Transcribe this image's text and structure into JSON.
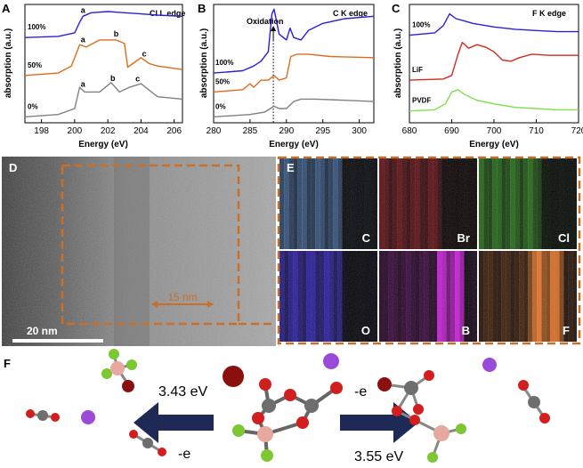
{
  "figure": {
    "panel_labels": [
      "A",
      "B",
      "C",
      "D",
      "E",
      "F"
    ],
    "panel_label_colors": {
      "dark": "#000000",
      "light": "#ffffff"
    }
  },
  "chart_data": [
    {
      "type": "line",
      "panel": "A",
      "title": "Cl L edge",
      "xlabel": "Energy (eV)",
      "ylabel": "absorption (a.u.)",
      "xlim": [
        197,
        206.5
      ],
      "xticks": [
        198,
        200,
        202,
        204,
        206
      ],
      "series": [
        {
          "name": "100%",
          "color": "#2b1fd8",
          "x": [
            197,
            199,
            200,
            200.3,
            200.5,
            201,
            202,
            203,
            204,
            205,
            206.5
          ],
          "y": [
            0.72,
            0.73,
            0.76,
            0.85,
            0.9,
            0.93,
            0.94,
            0.93,
            0.92,
            0.91,
            0.9
          ]
        },
        {
          "name": "50%",
          "color": "#e06b1c",
          "x": [
            197,
            199,
            199.8,
            200.3,
            200.7,
            201.5,
            202.5,
            203,
            203.2,
            203.5,
            204,
            204.5,
            205,
            206.5
          ],
          "y": [
            0.4,
            0.42,
            0.48,
            0.66,
            0.64,
            0.7,
            0.7,
            0.67,
            0.47,
            0.5,
            0.55,
            0.5,
            0.48,
            0.45
          ]
        },
        {
          "name": "0%",
          "color": "#808080",
          "x": [
            197,
            199,
            200,
            200.3,
            200.6,
            201.5,
            202.2,
            202.7,
            203.3,
            204,
            205,
            206.5
          ],
          "y": [
            0.05,
            0.07,
            0.12,
            0.3,
            0.26,
            0.26,
            0.34,
            0.26,
            0.3,
            0.33,
            0.22,
            0.2
          ]
        }
      ],
      "annotations": [
        {
          "text": "a",
          "x": 200.5,
          "series": "100%"
        },
        {
          "text": "a",
          "x": 200.5,
          "series": "50%"
        },
        {
          "text": "b",
          "x": 202.5,
          "series": "50%"
        },
        {
          "text": "c",
          "x": 204.2,
          "series": "50%"
        },
        {
          "text": "a",
          "x": 200.5,
          "series": "0%"
        },
        {
          "text": "b",
          "x": 202.3,
          "series": "0%"
        },
        {
          "text": "c",
          "x": 203.8,
          "series": "0%"
        }
      ]
    },
    {
      "type": "line",
      "panel": "B",
      "title": "C K edge",
      "xlabel": "Energy (eV)",
      "ylabel": "absorption (a.u.)",
      "xlim": [
        280,
        302
      ],
      "xticks": [
        280,
        285,
        290,
        295,
        300
      ],
      "annotation": "Oxidation",
      "marker_x": 288.2,
      "series": [
        {
          "name": "100%",
          "color": "#2b1fd8",
          "x": [
            280,
            284,
            285.5,
            286.5,
            287.5,
            288,
            288.3,
            289,
            290,
            290.5,
            291,
            292,
            293,
            295,
            298,
            302
          ],
          "y": [
            0.42,
            0.44,
            0.48,
            0.52,
            0.6,
            0.92,
            0.96,
            0.75,
            0.7,
            0.8,
            0.72,
            0.7,
            0.78,
            0.84,
            0.88,
            0.9
          ]
        },
        {
          "name": "50%",
          "color": "#e06b1c",
          "x": [
            280,
            284,
            285,
            285.5,
            286.5,
            287.5,
            288.3,
            289,
            290,
            290.6,
            291.5,
            293,
            296,
            302
          ],
          "y": [
            0.26,
            0.28,
            0.33,
            0.3,
            0.36,
            0.36,
            0.4,
            0.36,
            0.38,
            0.56,
            0.58,
            0.58,
            0.56,
            0.55
          ]
        },
        {
          "name": "0%",
          "color": "#808080",
          "x": [
            280,
            285,
            287,
            288.3,
            289,
            290,
            291,
            292,
            294,
            298,
            302
          ],
          "y": [
            0.05,
            0.07,
            0.09,
            0.14,
            0.12,
            0.12,
            0.18,
            0.2,
            0.2,
            0.19,
            0.18
          ]
        }
      ]
    },
    {
      "type": "line",
      "panel": "C",
      "title": "F K edge",
      "xlabel": "Energy (eV)",
      "ylabel": "absorption (a.u.)",
      "xlim": [
        680,
        720
      ],
      "xticks": [
        680,
        690,
        700,
        710,
        720
      ],
      "series": [
        {
          "name": "100%",
          "color": "#2b1fd8",
          "x": [
            680,
            686,
            688,
            689.5,
            691,
            693,
            695,
            700,
            705,
            710,
            715,
            720
          ],
          "y": [
            0.74,
            0.76,
            0.82,
            0.92,
            0.88,
            0.86,
            0.84,
            0.81,
            0.79,
            0.78,
            0.77,
            0.77
          ]
        },
        {
          "name": "LiF",
          "color": "#d42b1e",
          "x": [
            680,
            688,
            690,
            691.5,
            692.5,
            694,
            696,
            698,
            700,
            702,
            704,
            706,
            709,
            713,
            717,
            720
          ],
          "y": [
            0.36,
            0.37,
            0.4,
            0.58,
            0.68,
            0.63,
            0.66,
            0.64,
            0.6,
            0.53,
            0.52,
            0.55,
            0.58,
            0.57,
            0.57,
            0.57
          ]
        },
        {
          "name": "PVDF",
          "color": "#7fe04a",
          "x": [
            680,
            686,
            688.5,
            690,
            691.5,
            693,
            696,
            700,
            705,
            710,
            715,
            720
          ],
          "y": [
            0.1,
            0.11,
            0.16,
            0.26,
            0.28,
            0.24,
            0.19,
            0.16,
            0.13,
            0.12,
            0.11,
            0.11
          ]
        }
      ]
    }
  ],
  "tem": {
    "scale_bar": "20 nm",
    "thickness": "15 nm",
    "highlight_color": "#c8702a"
  },
  "edx_maps": [
    {
      "element": "C",
      "color": "#5a8fd6"
    },
    {
      "element": "Br",
      "color": "#c8202a"
    },
    {
      "element": "Cl",
      "color": "#3fb62a"
    },
    {
      "element": "O",
      "color": "#3a2ae0"
    },
    {
      "element": "B",
      "color": "#d21ee0"
    },
    {
      "element": "F",
      "color": "#f07a2a"
    }
  ],
  "reaction": {
    "left_energy": "3.43 eV",
    "left_electron": "-e",
    "right_energy": "3.55 eV",
    "right_electron": "-e",
    "arrow_color": "#1e2a55",
    "atom_colors": {
      "carbon": "#6e6e6e",
      "oxygen": "#d21e1e",
      "boron": "#e8a8a0",
      "fluorine": "#7cc832",
      "lithium": "#9a4ad8",
      "bromine": "#8a1010"
    }
  }
}
